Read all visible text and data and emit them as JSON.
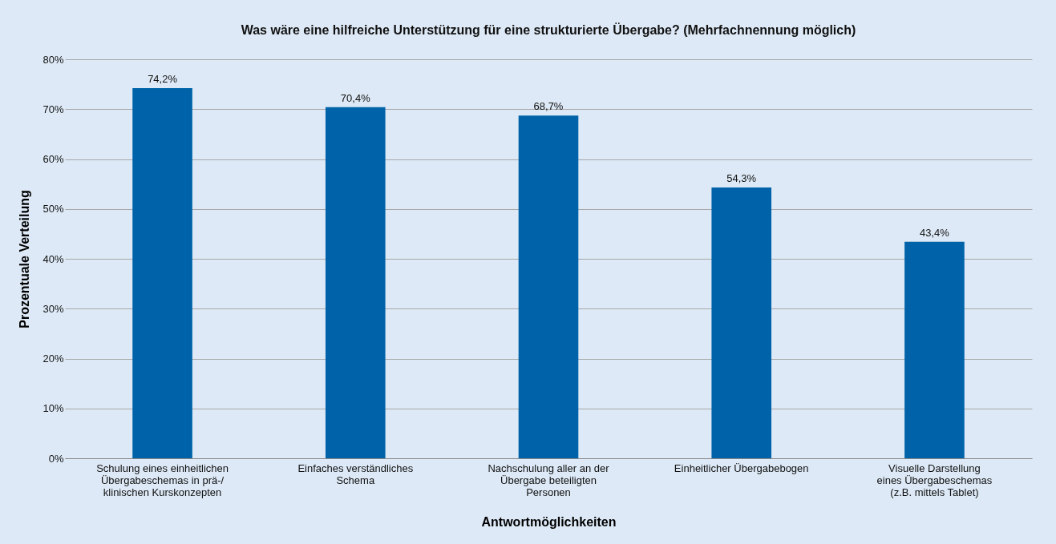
{
  "chart_data": {
    "type": "bar",
    "title": "Was wäre eine hilfreiche Unterstützung für eine strukturierte Übergabe? (Mehrfachnennung möglich)",
    "xlabel": "Antwortmöglichkeiten",
    "ylabel": "Prozentuale Verteilung",
    "categories": [
      "Schulung eines einheitlichen\nÜbergabeschemas in prä-/\nklinischen Kurskonzepten",
      "Einfaches verständliches\nSchema",
      "Nachschulung aller an der\nÜbergabe beteiligten\nPersonen",
      "Einheitlicher Übergabebogen",
      "Visuelle Darstellung\neines Übergabeschemas\n(z.B. mittels Tablet)"
    ],
    "values": [
      74.2,
      70.4,
      68.7,
      54.3,
      43.4
    ],
    "value_labels": [
      "74,2%",
      "70,4%",
      "68,7%",
      "54,3%",
      "43,4%"
    ],
    "color": "#0063a9",
    "ylim": [
      0,
      80
    ],
    "yticks": [
      {
        "value": 0,
        "label": "0%"
      },
      {
        "value": 10,
        "label": "10%"
      },
      {
        "value": 20,
        "label": "20%"
      },
      {
        "value": 30,
        "label": "30%"
      },
      {
        "value": 40,
        "label": "40%"
      },
      {
        "value": 50,
        "label": "50%"
      },
      {
        "value": 60,
        "label": "60%"
      },
      {
        "value": 70,
        "label": "70%"
      },
      {
        "value": 80,
        "label": "80%"
      }
    ],
    "grid": "y"
  }
}
